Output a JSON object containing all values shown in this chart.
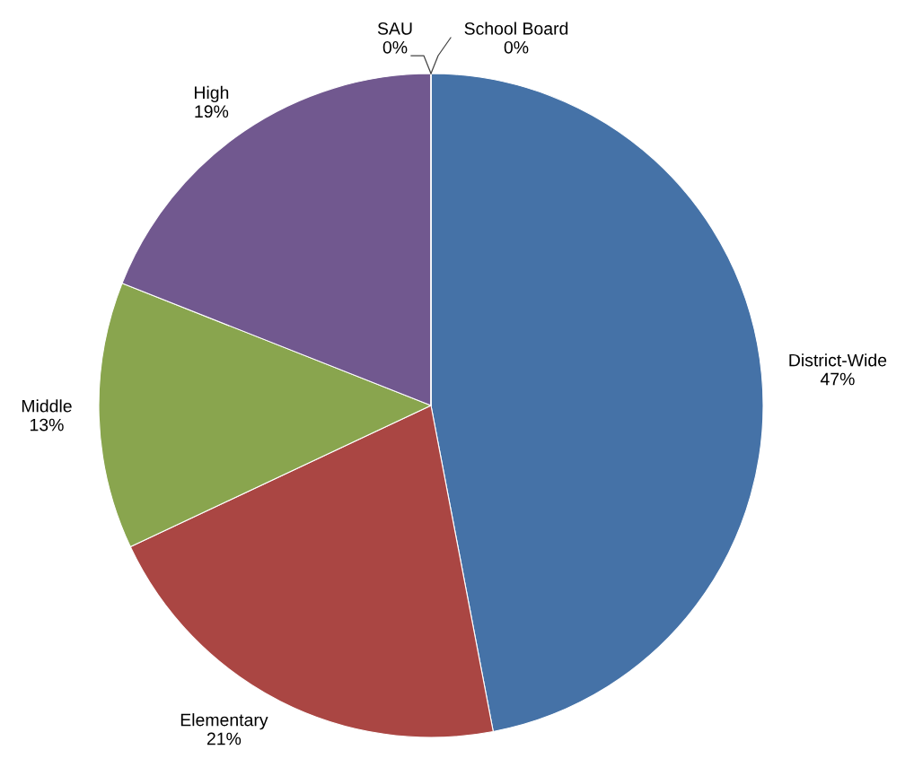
{
  "chart_data": {
    "type": "pie",
    "categories": [
      "District-Wide",
      "Elementary",
      "Middle",
      "High",
      "SAU",
      "School Board"
    ],
    "values": [
      47,
      21,
      13,
      19,
      0,
      0
    ],
    "value_labels": [
      "47%",
      "21%",
      "13%",
      "19%",
      "0%",
      "0%"
    ],
    "colors": [
      "#4572a7",
      "#aa4643",
      "#89a54e",
      "#71588f",
      "#4198af",
      "#db843d"
    ]
  }
}
